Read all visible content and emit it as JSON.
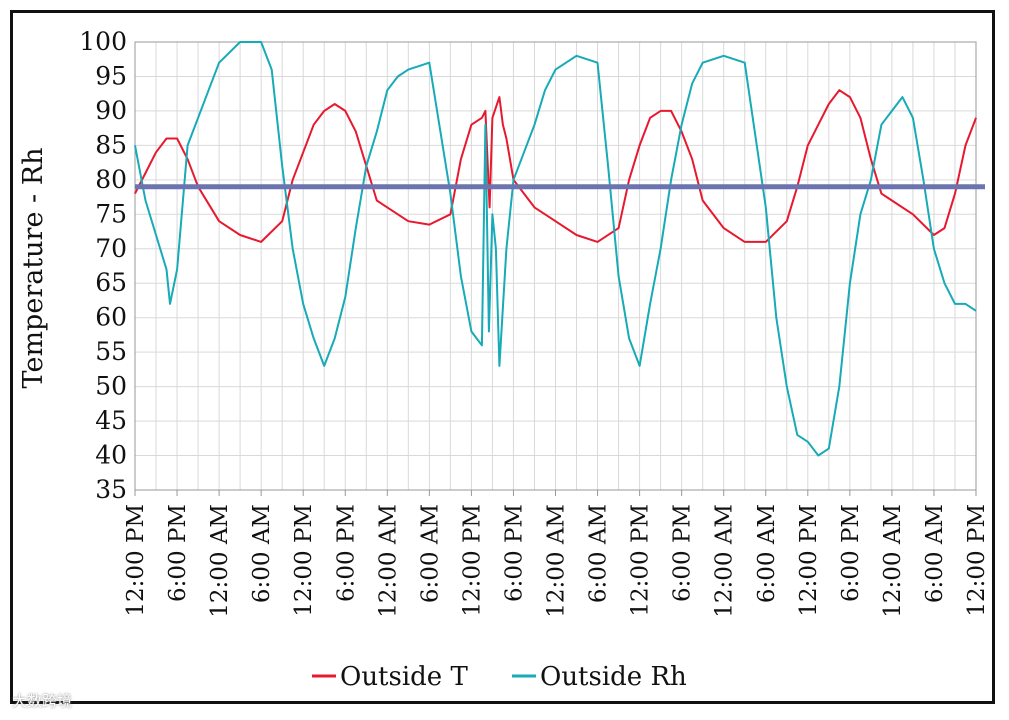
{
  "chart_data": {
    "type": "line",
    "title": "",
    "xlabel": "",
    "ylabel": "Temperature - Rh",
    "ylim": [
      35,
      100
    ],
    "yticks": [
      35,
      40,
      45,
      50,
      55,
      60,
      65,
      70,
      75,
      80,
      85,
      90,
      95,
      100
    ],
    "x_hours": [
      0,
      6,
      12,
      18,
      24,
      30,
      36,
      42,
      48,
      54,
      60,
      66,
      72,
      78,
      84,
      90,
      96,
      102,
      108,
      114,
      120
    ],
    "xticks": [
      "12:00 PM",
      "6:00 PM",
      "12:00 AM",
      "6:00 AM",
      "12:00 PM",
      "6:00 PM",
      "12:00 AM",
      "6:00 AM",
      "12:00 PM",
      "6:00 PM",
      "12:00 AM",
      "6:00 AM",
      "12:00 PM",
      "6:00 PM",
      "12:00 AM",
      "6:00 AM",
      "12:00 PM",
      "6:00 PM",
      "12:00 AM",
      "6:00 AM",
      "12:00 PM"
    ],
    "xlim": [
      0,
      120
    ],
    "grid": true,
    "legend_position": "bottom",
    "reference_line": {
      "value": 79,
      "color": "#6b74b0"
    },
    "series": [
      {
        "name": "Outside T",
        "color": "#e8182e",
        "x": [
          0,
          1.5,
          3,
          4.5,
          6,
          7.5,
          9,
          12,
          15,
          18,
          21,
          22.5,
          24,
          25.5,
          27,
          28.5,
          30,
          31.5,
          33,
          34.5,
          36,
          37.5,
          39,
          42,
          45,
          46.5,
          48,
          49.5,
          50,
          50.6,
          51,
          52,
          52.5,
          53,
          54,
          55.5,
          57,
          60,
          63,
          66,
          69,
          70.5,
          72,
          73.5,
          75,
          76.5,
          78,
          79.5,
          81,
          84,
          87,
          90,
          93,
          94.5,
          96,
          97.5,
          99,
          100.5,
          102,
          103.5,
          105,
          106.5,
          108,
          111,
          114,
          115.5,
          117,
          118.5,
          120
        ],
        "values": [
          78,
          81,
          84,
          86,
          86,
          83,
          79,
          74,
          72,
          71,
          74,
          80,
          84,
          88,
          90,
          91,
          90,
          87,
          82,
          77,
          76,
          75,
          74,
          73.5,
          75,
          83,
          88,
          89,
          90,
          76,
          89,
          92,
          88,
          86,
          80,
          78,
          76,
          74,
          72,
          71,
          73,
          80,
          85,
          89,
          90,
          90,
          87,
          83,
          77,
          73,
          71,
          71,
          74,
          79,
          85,
          88,
          91,
          93,
          92,
          89,
          83,
          78,
          77,
          75,
          72,
          73,
          78,
          85,
          89
        ]
      },
      {
        "name": "Outside Rh",
        "color": "#17aab7",
        "x": [
          0,
          1.5,
          3,
          4.5,
          5,
          6,
          7.5,
          9,
          10.5,
          12,
          15,
          18,
          19.5,
          21,
          22.5,
          24,
          25.5,
          27,
          28.5,
          30,
          31.5,
          33,
          34.5,
          36,
          37.5,
          39,
          42,
          45,
          46.5,
          48,
          49.5,
          50,
          50.5,
          51,
          51.5,
          52,
          53,
          54,
          55.5,
          57,
          58.5,
          60,
          63,
          66,
          67.5,
          69,
          70.5,
          72,
          73.5,
          75,
          76.5,
          78,
          79.5,
          81,
          84,
          87,
          90,
          91.5,
          93,
          94.5,
          96,
          97.5,
          99,
          100.5,
          102,
          103.5,
          105,
          106.5,
          108,
          109.5,
          111,
          112.5,
          114,
          115.5,
          117,
          118.5,
          120
        ],
        "values": [
          85,
          77,
          72,
          67,
          62,
          67,
          85,
          89,
          93,
          97,
          100,
          100,
          96,
          82,
          70,
          62,
          57,
          53,
          57,
          63,
          73,
          82,
          87,
          93,
          95,
          96,
          97,
          78,
          66,
          58,
          56,
          88,
          58,
          75,
          70,
          53,
          70,
          80,
          84,
          88,
          93,
          96,
          98,
          97,
          82,
          66,
          57,
          53,
          62,
          70,
          80,
          88,
          94,
          97,
          98,
          97,
          76,
          60,
          50,
          43,
          42,
          40,
          41,
          50,
          65,
          75,
          80,
          88,
          90,
          92,
          89,
          80,
          70,
          65,
          62,
          62,
          61
        ]
      }
    ],
    "legend": [
      {
        "label": "Outside T",
        "color": "#e8182e"
      },
      {
        "label": "Outside Rh",
        "color": "#17aab7"
      }
    ]
  },
  "watermark": "大数跨境"
}
